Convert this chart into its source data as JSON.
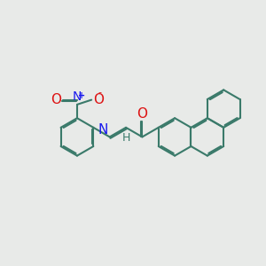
{
  "bg_color": "#e8eae8",
  "bond_color": "#3a7a6a",
  "bond_width": 1.5,
  "dbo": 0.055,
  "N_color": "#1a1aee",
  "O_color": "#dd1111",
  "font_size_atom": 10,
  "fig_size": [
    3.0,
    3.0
  ],
  "dpi": 100,
  "xlim": [
    0,
    10
  ],
  "ylim": [
    0,
    10
  ],
  "R": 0.72
}
